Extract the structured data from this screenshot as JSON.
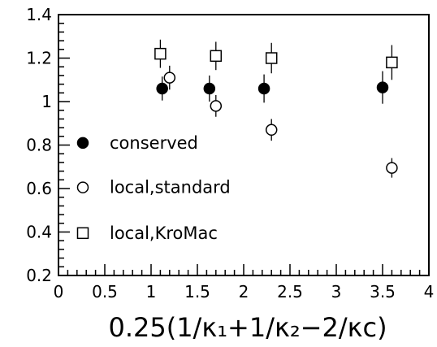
{
  "chart_data": {
    "type": "scatter",
    "xlabel": "0.25(1/κ₁+1/κ₂−2/κc)",
    "xlim": [
      0,
      4
    ],
    "ylim": [
      0.2,
      1.4
    ],
    "xticks": [
      0,
      0.5,
      1,
      1.5,
      2,
      2.5,
      3,
      3.5,
      4
    ],
    "xtick_labels": [
      "0",
      "0.5",
      "1",
      "1.5",
      "2",
      "2.5",
      "3",
      "3.5",
      "4"
    ],
    "yticks": [
      0.2,
      0.4,
      0.6,
      0.8,
      1.0,
      1.2,
      1.4
    ],
    "ytick_labels": [
      "0.2",
      "0.4",
      "0.6",
      "0.8",
      "1",
      "1.2",
      "1.4"
    ],
    "legend_placement": "lower-left",
    "series": [
      {
        "name": "conserved",
        "marker": "filled-circle",
        "color": "#000000",
        "points": [
          {
            "x": 1.12,
            "y": 1.06,
            "err": 0.055
          },
          {
            "x": 1.63,
            "y": 1.06,
            "err": 0.06
          },
          {
            "x": 2.22,
            "y": 1.06,
            "err": 0.065
          },
          {
            "x": 3.5,
            "y": 1.065,
            "err": 0.075
          }
        ]
      },
      {
        "name": "local,standard",
        "marker": "open-circle",
        "color": "#000000",
        "points": [
          {
            "x": 1.2,
            "y": 1.11,
            "err": 0.055
          },
          {
            "x": 1.7,
            "y": 0.98,
            "err": 0.05
          },
          {
            "x": 2.3,
            "y": 0.87,
            "err": 0.05
          },
          {
            "x": 3.6,
            "y": 0.695,
            "err": 0.045
          }
        ]
      },
      {
        "name": "local,KroMac",
        "marker": "open-square",
        "color": "#000000",
        "points": [
          {
            "x": 1.1,
            "y": 1.22,
            "err": 0.065
          },
          {
            "x": 1.7,
            "y": 1.21,
            "err": 0.065
          },
          {
            "x": 2.3,
            "y": 1.2,
            "err": 0.07
          },
          {
            "x": 3.6,
            "y": 1.18,
            "err": 0.08
          }
        ]
      }
    ]
  }
}
